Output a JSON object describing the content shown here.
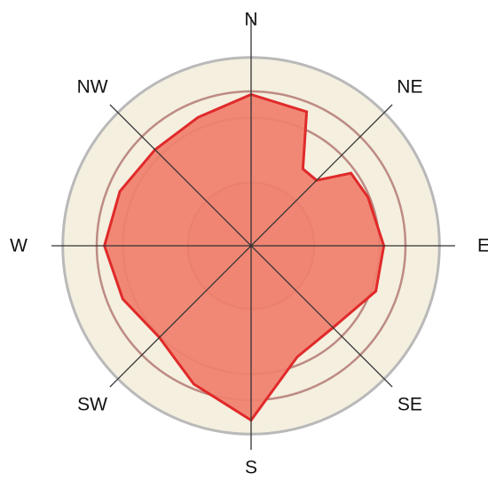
{
  "chart_data": {
    "type": "radar",
    "title": "",
    "directions": [
      "N",
      "NE",
      "E",
      "SE",
      "S",
      "SW",
      "W",
      "NW"
    ],
    "angles_deg": [
      0,
      22.5,
      34,
      45,
      54,
      67.5,
      90,
      110,
      135,
      157.5,
      180,
      202.5,
      225,
      247.5,
      270,
      292.5,
      315,
      337.5
    ],
    "values": [
      0.98,
      0.94,
      0.6,
      0.6,
      0.8,
      0.82,
      0.86,
      0.86,
      0.75,
      0.78,
      1.13,
      0.97,
      0.84,
      0.9,
      0.95,
      0.92,
      0.88,
      0.9
    ],
    "rings": [
      0.41,
      0.83,
      1.0,
      1.22
    ],
    "grid": true,
    "colors": {
      "fill": "#f0806e",
      "edge": "#e02a2a",
      "outer_ring": "#b9b9b9",
      "inner_ring": "#ab6a66",
      "background_disc": "#f4efdf",
      "axis": "#333333",
      "inner_disc_tint": "#cf6658"
    }
  }
}
